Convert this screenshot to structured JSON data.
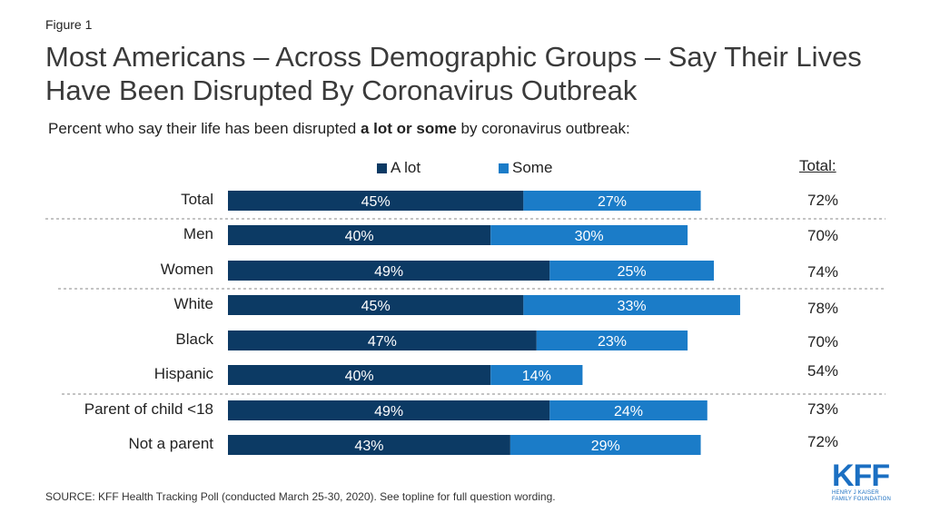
{
  "figure_label": "Figure 1",
  "title": "Most Americans – Across Demographic Groups – Say Their Lives Have Been Disrupted By Coronavirus Outbreak",
  "subtitle": {
    "prefix": "Percent who say their life has been disrupted ",
    "bold": "a lot or some",
    "suffix": " by coronavirus outbreak:"
  },
  "total_header": "Total:",
  "footer": "SOURCE: KFF Health Tracking Poll (conducted March 25-30, 2020). See topline for full question wording.",
  "logo": {
    "name": "KFF",
    "sub1": "HENRY J KAISER",
    "sub2": "FAMILY FOUNDATION"
  },
  "colors": {
    "a_lot": "#0c3a64",
    "some": "#1b7cc8",
    "bar_label": "#ffffff",
    "divider": "#888888"
  },
  "chart_data": {
    "type": "bar",
    "orientation": "horizontal",
    "stacked": true,
    "categories": [
      "Total",
      "Men",
      "Women",
      "White",
      "Black",
      "Hispanic",
      "Parent of child <18",
      "Not a parent"
    ],
    "series": [
      {
        "name": "A lot",
        "values": [
          45,
          40,
          49,
          45,
          47,
          40,
          49,
          43
        ],
        "labels": [
          "45%",
          "40%",
          "49%",
          "45%",
          "47%",
          "40%",
          "49%",
          "43%"
        ]
      },
      {
        "name": "Some",
        "values": [
          27,
          30,
          25,
          33,
          23,
          14,
          24,
          29
        ],
        "labels": [
          "27%",
          "30%",
          "25%",
          "33%",
          "23%",
          "14%",
          "24%",
          "29%"
        ]
      }
    ],
    "totals": [
      "72%",
      "70%",
      "74%",
      "78%",
      "70%",
      "54%",
      "73%",
      "72%"
    ],
    "xlim": [
      0,
      100
    ],
    "legend_position": "top",
    "grid": false
  }
}
